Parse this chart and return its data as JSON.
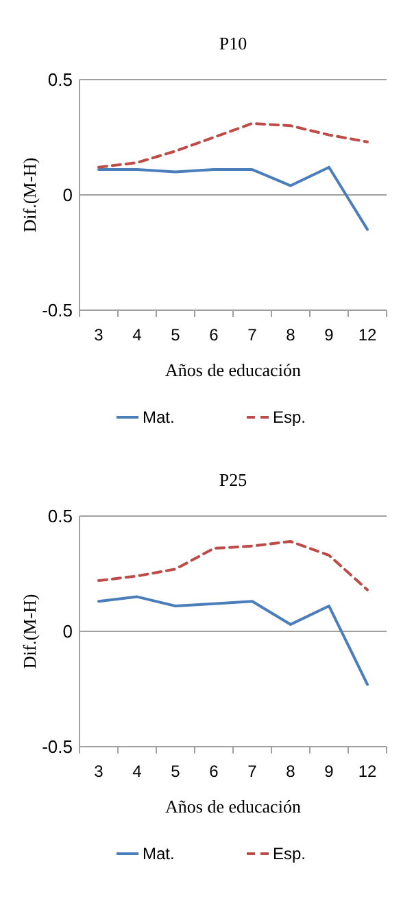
{
  "chart_data": [
    {
      "type": "line",
      "title": "P10",
      "xlabel": "Años de educación",
      "ylabel": "Dif.(M-H)",
      "categories": [
        "3",
        "4",
        "5",
        "6",
        "7",
        "8",
        "9",
        "12"
      ],
      "ylim": [
        -0.5,
        0.5
      ],
      "yticks": [
        -0.5,
        0,
        0.5
      ],
      "grid": "y",
      "legend": "bottom",
      "series": [
        {
          "name": "Mat.",
          "color": "#4a7ebb",
          "line_style": "solid",
          "values": [
            0.11,
            0.11,
            0.1,
            0.11,
            0.11,
            0.04,
            0.12,
            -0.15
          ]
        },
        {
          "name": "Esp.",
          "color": "#be4b48",
          "line_style": "dashed",
          "values": [
            0.12,
            0.14,
            0.19,
            0.25,
            0.31,
            0.3,
            0.26,
            0.23
          ]
        }
      ]
    },
    {
      "type": "line",
      "title": "P25",
      "xlabel": "Años de educación",
      "ylabel": "Dif.(M-H)",
      "categories": [
        "3",
        "4",
        "5",
        "6",
        "7",
        "8",
        "9",
        "12"
      ],
      "ylim": [
        -0.5,
        0.5
      ],
      "yticks": [
        -0.5,
        0,
        0.5
      ],
      "grid": "y",
      "legend": "bottom",
      "series": [
        {
          "name": "Mat.",
          "color": "#4a7ebb",
          "line_style": "solid",
          "values": [
            0.13,
            0.15,
            0.11,
            0.12,
            0.13,
            0.03,
            0.11,
            -0.23
          ]
        },
        {
          "name": "Esp.",
          "color": "#be4b48",
          "line_style": "dashed",
          "values": [
            0.22,
            0.24,
            0.27,
            0.36,
            0.37,
            0.39,
            0.33,
            0.18
          ]
        }
      ]
    }
  ]
}
